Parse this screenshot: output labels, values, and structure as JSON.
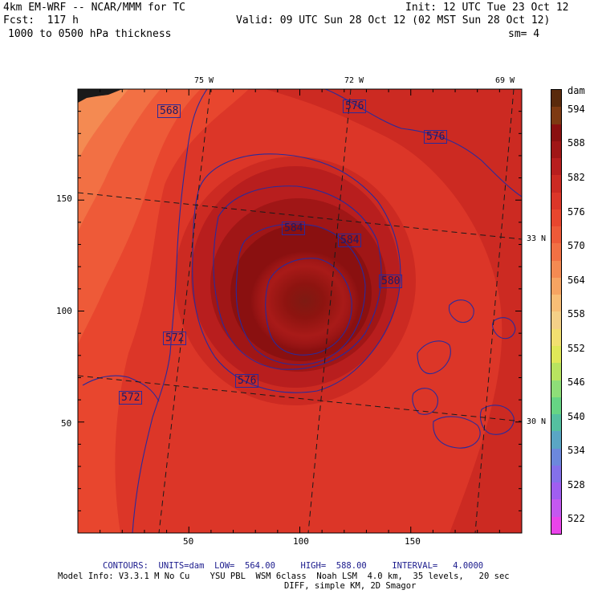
{
  "header": {
    "model_line": "4km EM-WRF -- NCAR/MMM for TC",
    "init_line": "Init: 12 UTC Tue 23 Oct 12",
    "fcst_line": "Fcst:  117 h",
    "valid_line": "Valid: 09 UTC Sun 28 Oct 12 (02 MST Sun 28 Oct 12)",
    "field_line": "1000 to 0500 hPa thickness",
    "smooth_line": "sm= 4"
  },
  "map": {
    "lon_labels": [
      "75 W",
      "72 W",
      "69 W"
    ],
    "lat_labels": [
      "33 N",
      "30 N"
    ],
    "x_ticks": [
      "50",
      "100",
      "150"
    ],
    "y_ticks": [
      "150",
      "100",
      "50"
    ],
    "contour_labels": [
      "568",
      "576",
      "576",
      "584",
      "584",
      "580",
      "572",
      "576",
      "572"
    ]
  },
  "colorbar": {
    "unit": "dam",
    "labels": [
      "594",
      "588",
      "582",
      "576",
      "570",
      "564",
      "558",
      "552",
      "546",
      "540",
      "534",
      "528",
      "522"
    ],
    "colors": [
      "#5a2a0c",
      "#7e3a12",
      "#8a1010",
      "#a01616",
      "#b81e1e",
      "#cc2a22",
      "#dc3628",
      "#e8462e",
      "#ee5a38",
      "#f27044",
      "#f48a52",
      "#f6a462",
      "#f8be76",
      "#f4d088",
      "#f2e070",
      "#e0e858",
      "#b8e460",
      "#8ede78",
      "#66d484",
      "#54c0a0",
      "#5aa6c4",
      "#6c88dc",
      "#8470ea",
      "#a05ef0",
      "#c458f0",
      "#ea44ea"
    ]
  },
  "footer": {
    "contours_line": "CONTOURS:  UNITS=dam  LOW=  564.00     HIGH=  588.00     INTERVAL=   4.0000",
    "model_info_line": "Model Info: V3.3.1 M No Cu    YSU PBL  WSM 6class  Noah LSM  4.0 km,  35 levels,   20 sec",
    "diff_line": "DIFF, simple KM, 2D Smagor"
  }
}
